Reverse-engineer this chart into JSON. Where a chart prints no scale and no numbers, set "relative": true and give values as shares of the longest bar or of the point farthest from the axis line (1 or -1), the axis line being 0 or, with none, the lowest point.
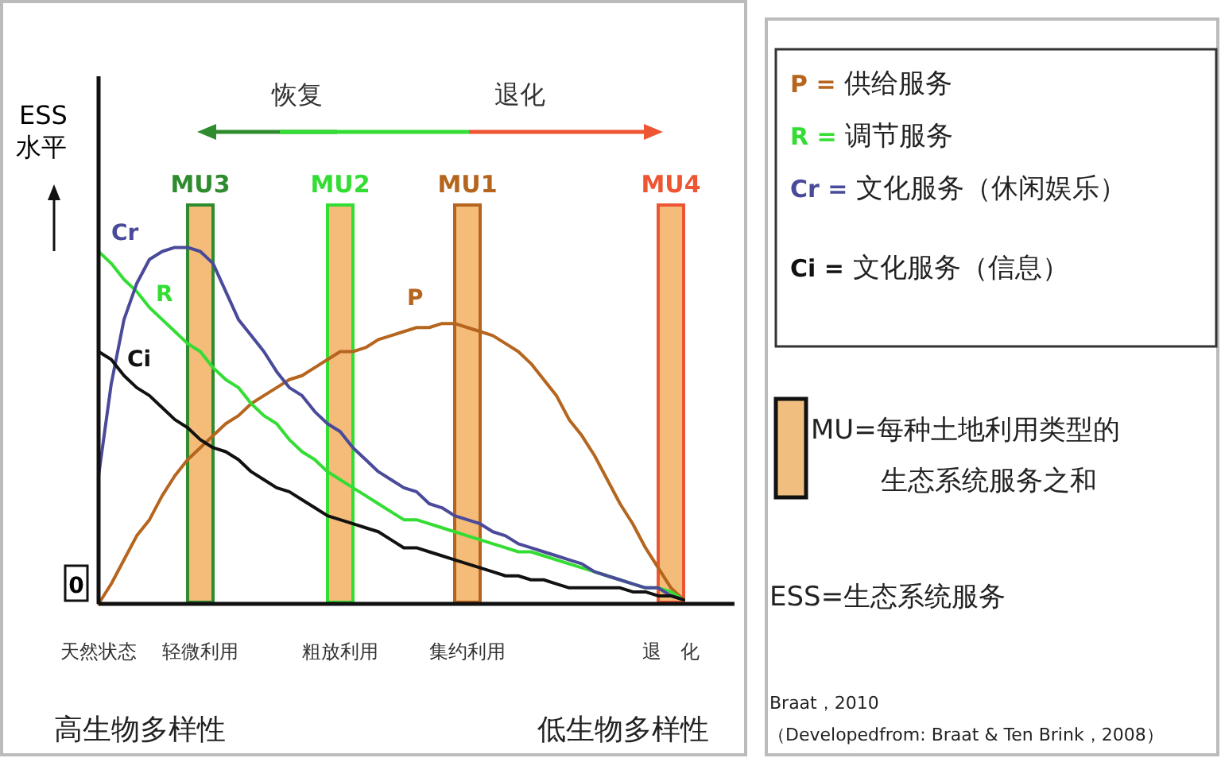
{
  "chart_data": {
    "type": "line",
    "relative": true,
    "ylabel": "ESS水平",
    "categories": [
      "天然状态",
      null,
      null,
      null,
      null,
      null,
      null,
      null,
      "轻微利用",
      null,
      null,
      null,
      null,
      null,
      null,
      null,
      null,
      null,
      null,
      "粗放利用",
      null,
      null,
      null,
      null,
      null,
      null,
      null,
      null,
      null,
      "集约利用",
      null,
      null,
      null,
      null,
      null,
      null,
      null,
      null,
      null,
      null,
      null,
      null,
      null,
      null,
      null,
      "退　化",
      null
    ],
    "series": [
      {
        "type": "bar",
        "color": "#f5bb78",
        "colors": [
          null,
          null,
          null,
          null,
          null,
          null,
          null,
          null,
          "#2e8b2e",
          null,
          null,
          null,
          null,
          null,
          null,
          null,
          null,
          null,
          null,
          "#33dd33",
          null,
          null,
          null,
          null,
          null,
          null,
          null,
          null,
          null,
          "#b5651d",
          null,
          null,
          null,
          null,
          null,
          null,
          null,
          null,
          null,
          null,
          null,
          null,
          null,
          null,
          null,
          "#ee5533",
          null
        ],
        "values": [
          null,
          null,
          null,
          null,
          null,
          null,
          null,
          null,
          1,
          null,
          null,
          null,
          null,
          null,
          null,
          null,
          null,
          null,
          null,
          1,
          null,
          null,
          null,
          null,
          null,
          null,
          null,
          null,
          null,
          1,
          null,
          null,
          null,
          null,
          null,
          null,
          null,
          null,
          null,
          null,
          null,
          null,
          null,
          null,
          null,
          1,
          null
        ]
      },
      {
        "name": "P",
        "color": "#b5651d",
        "values": [
          0,
          0.05,
          0.11,
          0.17,
          0.21,
          0.27,
          0.32,
          0.36,
          0.39,
          0.42,
          0.45,
          0.47,
          0.5,
          0.52,
          0.54,
          0.56,
          0.57,
          0.59,
          0.61,
          0.63,
          0.63,
          0.64,
          0.66,
          0.67,
          0.68,
          0.69,
          0.69,
          0.7,
          0.7,
          0.69,
          0.68,
          0.67,
          0.65,
          0.63,
          0.6,
          0.56,
          0.52,
          0.46,
          0.42,
          0.37,
          0.31,
          0.25,
          0.2,
          0.14,
          0.09,
          0.04,
          0.01
        ]
      },
      {
        "name": "R",
        "color": "#33dd33",
        "values": [
          0.88,
          0.85,
          0.81,
          0.78,
          0.74,
          0.71,
          0.68,
          0.65,
          0.63,
          0.59,
          0.56,
          0.54,
          0.5,
          0.47,
          0.45,
          0.41,
          0.38,
          0.36,
          0.33,
          0.31,
          0.29,
          0.27,
          0.25,
          0.23,
          0.21,
          0.21,
          0.2,
          0.19,
          0.18,
          0.17,
          0.16,
          0.15,
          0.14,
          0.13,
          0.13,
          0.12,
          0.11,
          0.1,
          0.09,
          0.08,
          0.07,
          0.06,
          0.05,
          0.04,
          0.04,
          0.03,
          0.01
        ]
      },
      {
        "name": "Cr",
        "color": "#4a4a9a",
        "values": [
          0.32,
          0.55,
          0.71,
          0.8,
          0.86,
          0.88,
          0.89,
          0.89,
          0.88,
          0.85,
          0.78,
          0.71,
          0.67,
          0.63,
          0.58,
          0.54,
          0.52,
          0.48,
          0.45,
          0.43,
          0.39,
          0.36,
          0.33,
          0.31,
          0.29,
          0.28,
          0.25,
          0.24,
          0.22,
          0.21,
          0.2,
          0.18,
          0.17,
          0.15,
          0.14,
          0.13,
          0.12,
          0.11,
          0.1,
          0.08,
          0.07,
          0.06,
          0.05,
          0.04,
          0.04,
          0.02,
          0.01
        ]
      },
      {
        "name": "Ci",
        "color": "#111111",
        "values": [
          0.63,
          0.61,
          0.57,
          0.54,
          0.52,
          0.49,
          0.46,
          0.44,
          0.41,
          0.39,
          0.38,
          0.36,
          0.33,
          0.31,
          0.29,
          0.28,
          0.26,
          0.24,
          0.22,
          0.21,
          0.2,
          0.19,
          0.18,
          0.16,
          0.14,
          0.14,
          0.13,
          0.12,
          0.11,
          0.1,
          0.09,
          0.08,
          0.07,
          0.07,
          0.06,
          0.06,
          0.05,
          0.04,
          0.04,
          0.04,
          0.04,
          0.04,
          0.03,
          0.03,
          0.02,
          0.02,
          0.01
        ]
      }
    ],
    "annotations": [
      "P = 供给服务",
      "R = 调节服务",
      "Cr = 文化服务（休闲娱乐）",
      "Ci = 文化服务（信息）",
      "MU=每种土地利用类型的生态系统服务之和",
      "ESS=生态系统服务",
      "Braat，2010",
      "（Developedfrom: Braat & Ten Brink，2008）",
      "恢复",
      "退化",
      "高生物多样性",
      "低生物多样性",
      "0",
      {
        "text": "MU3",
        "x": "轻微利用",
        "y": 1
      },
      {
        "text": "MU2",
        "x": "粗放利用",
        "y": 1
      },
      {
        "text": "MU1",
        "x": "集约利用",
        "y": 1
      },
      {
        "text": "MU4",
        "x": "退　化",
        "y": 1
      }
    ]
  }
}
